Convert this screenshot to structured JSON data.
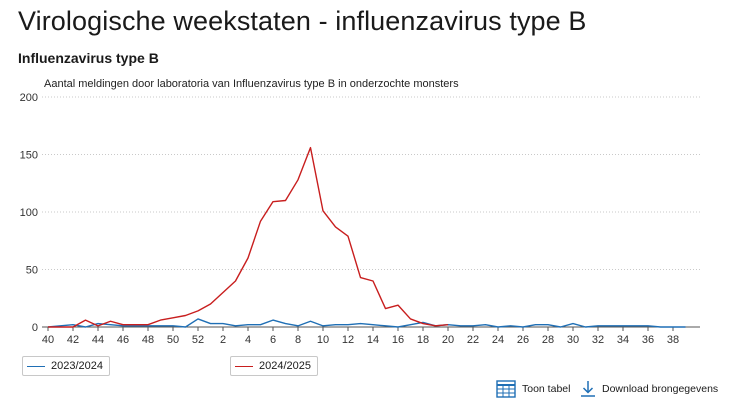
{
  "page": {
    "title": "Virologische weekstaten - influenzavirus type B",
    "chart_heading": "Influenzavirus type B"
  },
  "actions": {
    "table_label": "Toon tabel",
    "download_label": "Download brongegevens"
  },
  "chart_data": {
    "type": "line",
    "title": "Aantal meldingen door laboratoria van Influenzavirus type B in onderzochte monsters",
    "xlabel": "",
    "ylabel": "",
    "ylim": [
      0,
      200
    ],
    "yticks": [
      0,
      50,
      100,
      150,
      200
    ],
    "grid": true,
    "legend_position": "bottom-left",
    "categories": [
      "40",
      "41",
      "42",
      "43",
      "44",
      "45",
      "46",
      "47",
      "48",
      "49",
      "50",
      "51",
      "52",
      "1",
      "2",
      "3",
      "4",
      "5",
      "6",
      "7",
      "8",
      "9",
      "10",
      "11",
      "12",
      "13",
      "14",
      "15",
      "16",
      "17",
      "18",
      "19",
      "20",
      "21",
      "22",
      "23",
      "24",
      "25",
      "26",
      "27",
      "28",
      "29",
      "30",
      "31",
      "32",
      "33",
      "34",
      "35",
      "36",
      "37",
      "38",
      "39"
    ],
    "xtick_labels": [
      "40",
      "42",
      "44",
      "46",
      "48",
      "50",
      "52",
      "2",
      "4",
      "6",
      "8",
      "10",
      "12",
      "14",
      "16",
      "18",
      "20",
      "22",
      "24",
      "26",
      "28",
      "30",
      "32",
      "34",
      "36",
      "38"
    ],
    "series": [
      {
        "name": "2023/2024",
        "color": "#1f6fb5",
        "values": [
          0,
          1,
          2,
          0,
          3,
          2,
          1,
          1,
          1,
          1,
          1,
          0,
          7,
          3,
          3,
          1,
          2,
          2,
          6,
          3,
          1,
          5,
          1,
          2,
          2,
          3,
          2,
          1,
          0,
          2,
          4,
          1,
          2,
          1,
          1,
          2,
          0,
          1,
          0,
          2,
          2,
          0,
          3,
          0,
          1,
          1,
          1,
          1,
          1,
          0,
          0,
          0
        ]
      },
      {
        "name": "2024/2025",
        "color": "#c81e1e",
        "values": [
          0,
          0,
          0,
          6,
          1,
          5,
          2,
          2,
          2,
          6,
          8,
          10,
          14,
          20,
          30,
          40,
          60,
          92,
          109,
          110,
          128,
          156,
          101,
          87,
          79,
          43,
          40,
          16,
          19,
          7,
          3,
          1,
          2,
          null,
          null,
          null,
          null,
          null,
          null,
          null,
          null,
          null,
          null,
          null,
          null,
          null,
          null,
          null,
          null,
          null,
          null,
          null
        ]
      }
    ]
  }
}
